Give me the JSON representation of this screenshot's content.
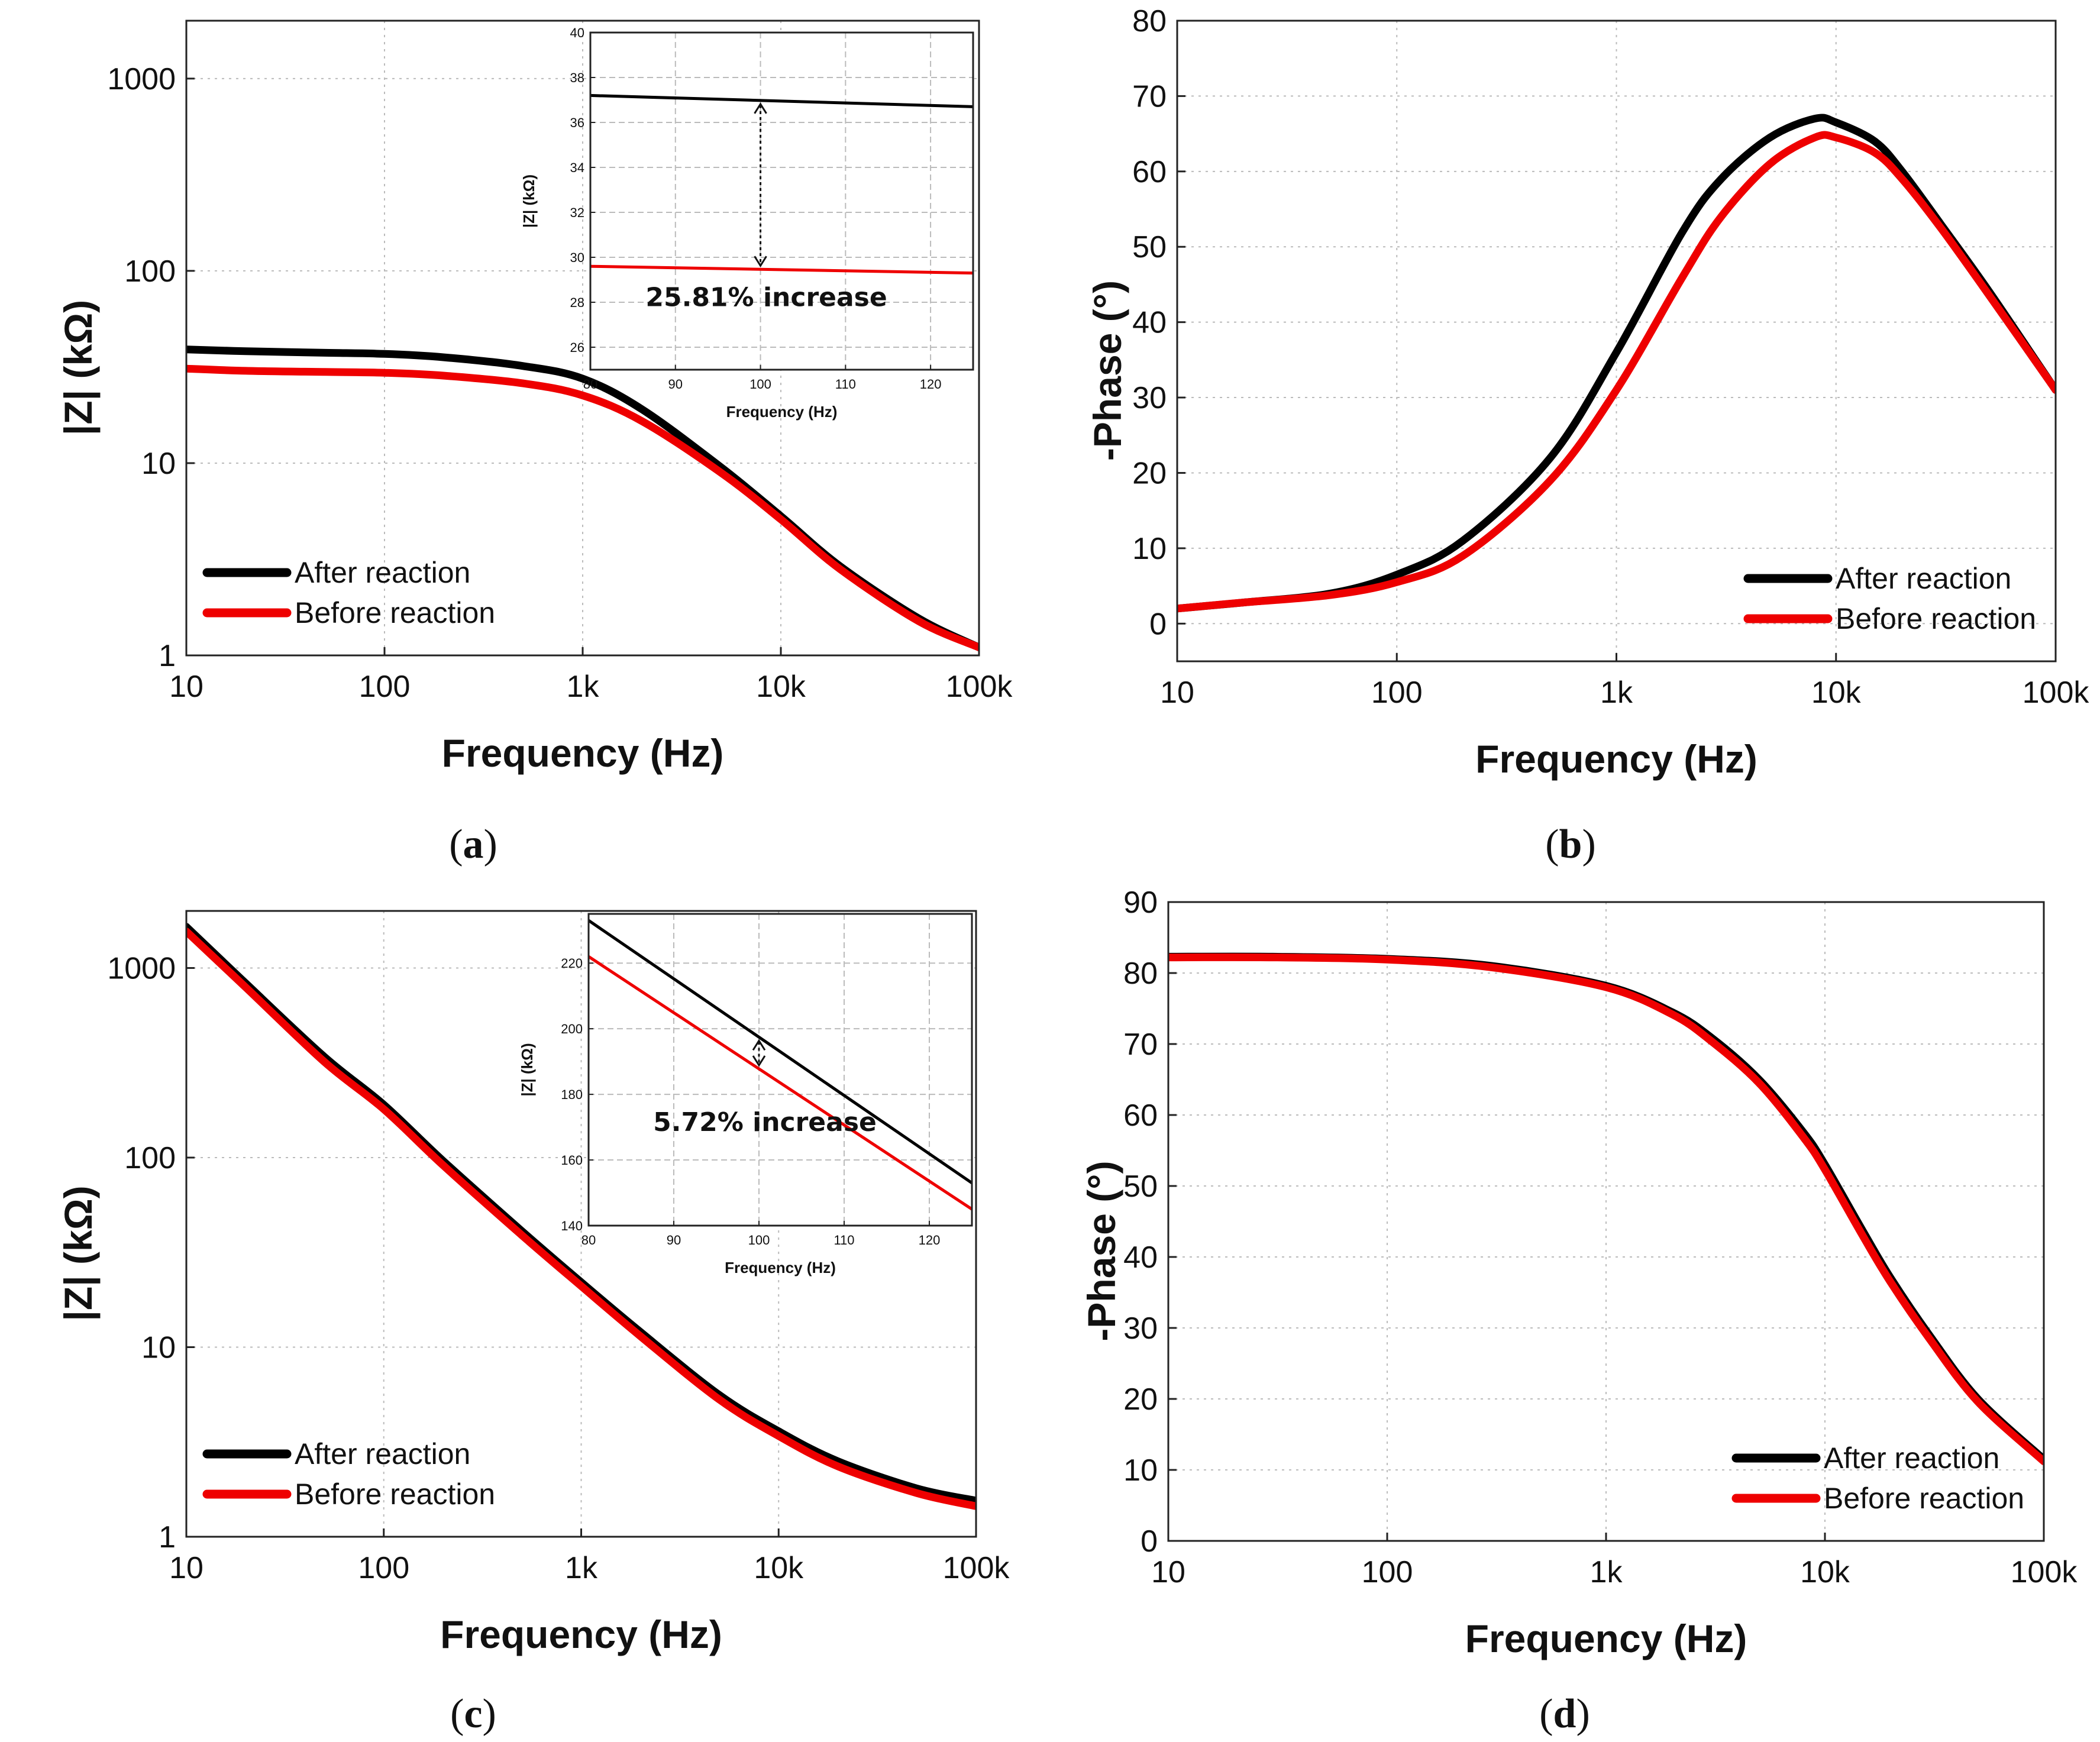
{
  "colors": {
    "after": "#000000",
    "before": "#ee0000",
    "grid": "#bbbbbb"
  },
  "chart_data": [
    {
      "id": "a",
      "type": "line",
      "panel_label": "a",
      "xlabel": "Frequency (Hz)",
      "ylabel": "|Z| (kΩ)",
      "xscale": "log",
      "yscale": "log",
      "xlim": [
        10,
        100000
      ],
      "ylim": [
        1,
        2000
      ],
      "xticks": [
        10,
        100,
        1000,
        10000,
        100000
      ],
      "xtick_labels": [
        "10",
        "100",
        "1k",
        "10k",
        "100k"
      ],
      "yticks": [
        1,
        10,
        100,
        1000
      ],
      "ytick_labels": [
        "1",
        "10",
        "100",
        "1000"
      ],
      "legend": [
        "After reaction",
        "Before reaction"
      ],
      "legend_position": "bottom-left",
      "series": [
        {
          "name": "After reaction",
          "color_key": "after",
          "x": [
            10,
            20,
            50,
            100,
            200,
            500,
            1000,
            2000,
            5000,
            10000,
            20000,
            50000,
            100000
          ],
          "y": [
            39,
            38.2,
            37.5,
            37,
            35.5,
            32,
            27.5,
            19,
            9.5,
            5.3,
            2.9,
            1.55,
            1.1
          ]
        },
        {
          "name": "Before reaction",
          "color_key": "before",
          "x": [
            10,
            20,
            50,
            100,
            200,
            500,
            1000,
            2000,
            5000,
            10000,
            20000,
            50000,
            100000
          ],
          "y": [
            31,
            30.2,
            29.8,
            29.5,
            28.5,
            26,
            22.5,
            16.5,
            8.9,
            5.1,
            2.8,
            1.5,
            1.1
          ]
        }
      ],
      "inset": {
        "xlabel": "Frequency (Hz)",
        "ylabel": "|Z| (kΩ)",
        "xlim": [
          80,
          125
        ],
        "ylim": [
          25,
          40
        ],
        "xticks": [
          80,
          90,
          100,
          110,
          120
        ],
        "yticks": [
          26,
          28,
          30,
          32,
          34,
          36,
          38,
          40
        ],
        "annotation": "25.81% increase",
        "arrow_x": 100,
        "series": [
          {
            "name": "After reaction",
            "color_key": "after",
            "x": [
              80,
              125
            ],
            "y": [
              37.2,
              36.7
            ]
          },
          {
            "name": "Before reaction",
            "color_key": "before",
            "x": [
              80,
              125
            ],
            "y": [
              29.6,
              29.3
            ]
          }
        ]
      }
    },
    {
      "id": "b",
      "type": "line",
      "panel_label": "b",
      "xlabel": "Frequency (Hz)",
      "ylabel": "-Phase (°)",
      "xscale": "log",
      "yscale": "linear",
      "xlim": [
        10,
        100000
      ],
      "ylim": [
        -5,
        80
      ],
      "xticks": [
        10,
        100,
        1000,
        10000,
        100000
      ],
      "xtick_labels": [
        "10",
        "100",
        "1k",
        "10k",
        "100k"
      ],
      "yticks": [
        0,
        10,
        20,
        30,
        40,
        50,
        60,
        70,
        80
      ],
      "ytick_labels": [
        "0",
        "10",
        "20",
        "30",
        "40",
        "50",
        "60",
        "70",
        "80"
      ],
      "legend": [
        "After reaction",
        "Before reaction"
      ],
      "legend_position": "bottom-right",
      "series": [
        {
          "name": "After reaction",
          "color_key": "after",
          "x": [
            10,
            20,
            50,
            100,
            200,
            500,
            1000,
            2000,
            3000,
            5000,
            8000,
            10000,
            15000,
            20000,
            30000,
            50000,
            100000
          ],
          "y": [
            2,
            2.8,
            4,
            6.5,
            11,
            22,
            36,
            52,
            59,
            64.5,
            67,
            66.5,
            64,
            60,
            53,
            44,
            31
          ]
        },
        {
          "name": "Before reaction",
          "color_key": "before",
          "x": [
            10,
            20,
            50,
            100,
            200,
            500,
            1000,
            2000,
            3000,
            5000,
            8000,
            10000,
            15000,
            20000,
            30000,
            50000,
            100000
          ],
          "y": [
            2,
            2.8,
            3.8,
            5.5,
            9,
            19,
            31,
            46,
            54,
            61,
            64.5,
            64.5,
            62.5,
            59,
            52.5,
            43.5,
            31
          ]
        }
      ]
    },
    {
      "id": "c",
      "type": "line",
      "panel_label": "c",
      "xlabel": "Frequency (Hz)",
      "ylabel": "|Z| (kΩ)",
      "xscale": "log",
      "yscale": "log",
      "xlim": [
        10,
        100000
      ],
      "ylim": [
        1,
        2000
      ],
      "xticks": [
        10,
        100,
        1000,
        10000,
        100000
      ],
      "xtick_labels": [
        "10",
        "100",
        "1k",
        "10k",
        "100k"
      ],
      "yticks": [
        1,
        10,
        100,
        1000
      ],
      "ytick_labels": [
        "1",
        "10",
        "100",
        "1000"
      ],
      "legend": [
        "After reaction",
        "Before reaction"
      ],
      "legend_position": "bottom-left",
      "series": [
        {
          "name": "After reaction",
          "color_key": "after",
          "x": [
            10,
            20,
            50,
            100,
            200,
            500,
            1000,
            2000,
            5000,
            10000,
            20000,
            50000,
            100000
          ],
          "y": [
            1650,
            830,
            340,
            190,
            96,
            41,
            22,
            12,
            5.6,
            3.6,
            2.5,
            1.8,
            1.55
          ]
        },
        {
          "name": "Before reaction",
          "color_key": "before",
          "x": [
            10,
            20,
            50,
            100,
            200,
            500,
            1000,
            2000,
            5000,
            10000,
            20000,
            50000,
            100000
          ],
          "y": [
            1560,
            790,
            320,
            180,
            91,
            39,
            21,
            11.4,
            5.3,
            3.4,
            2.35,
            1.7,
            1.45
          ]
        }
      ],
      "inset": {
        "xlabel": "Frequency (Hz)",
        "ylabel": "|Z| (kΩ)",
        "xlim": [
          80,
          125
        ],
        "ylim": [
          140,
          235
        ],
        "xticks": [
          80,
          90,
          100,
          110,
          120
        ],
        "yticks": [
          140,
          160,
          180,
          200,
          220
        ],
        "annotation": "5.72% increase",
        "arrow_x": 100,
        "series": [
          {
            "name": "After reaction",
            "color_key": "after",
            "x": [
              80,
              125
            ],
            "y": [
              233,
              153
            ]
          },
          {
            "name": "Before reaction",
            "color_key": "before",
            "x": [
              80,
              125
            ],
            "y": [
              222,
              145
            ]
          }
        ]
      }
    },
    {
      "id": "d",
      "type": "line",
      "panel_label": "d",
      "xlabel": "Frequency (Hz)",
      "ylabel": "-Phase (°)",
      "xscale": "log",
      "yscale": "linear",
      "xlim": [
        10,
        100000
      ],
      "ylim": [
        0,
        90
      ],
      "xticks": [
        10,
        100,
        1000,
        10000,
        100000
      ],
      "xtick_labels": [
        "10",
        "100",
        "1k",
        "10k",
        "100k"
      ],
      "yticks": [
        0,
        10,
        20,
        30,
        40,
        50,
        60,
        70,
        80,
        90
      ],
      "ytick_labels": [
        "0",
        "10",
        "20",
        "30",
        "40",
        "50",
        "60",
        "70",
        "80",
        "90"
      ],
      "legend": [
        "After reaction",
        "Before reaction"
      ],
      "legend_position": "bottom-right",
      "series": [
        {
          "name": "After reaction",
          "color_key": "after",
          "x": [
            10,
            30,
            100,
            300,
            1000,
            2000,
            3000,
            5000,
            8000,
            10000,
            15000,
            20000,
            30000,
            50000,
            100000
          ],
          "y": [
            82.3,
            82.3,
            82,
            81,
            78.2,
            74.5,
            71,
            65,
            57.5,
            53,
            43.5,
            37,
            29,
            20,
            11.5
          ]
        },
        {
          "name": "Before reaction",
          "color_key": "before",
          "x": [
            10,
            30,
            100,
            300,
            1000,
            2000,
            3000,
            5000,
            8000,
            10000,
            15000,
            20000,
            30000,
            50000,
            100000
          ],
          "y": [
            82.2,
            82.2,
            81.9,
            80.8,
            78,
            74.2,
            70.5,
            64.5,
            56.8,
            52.3,
            42.8,
            36.4,
            28.5,
            19.6,
            11.2
          ]
        }
      ]
    }
  ]
}
